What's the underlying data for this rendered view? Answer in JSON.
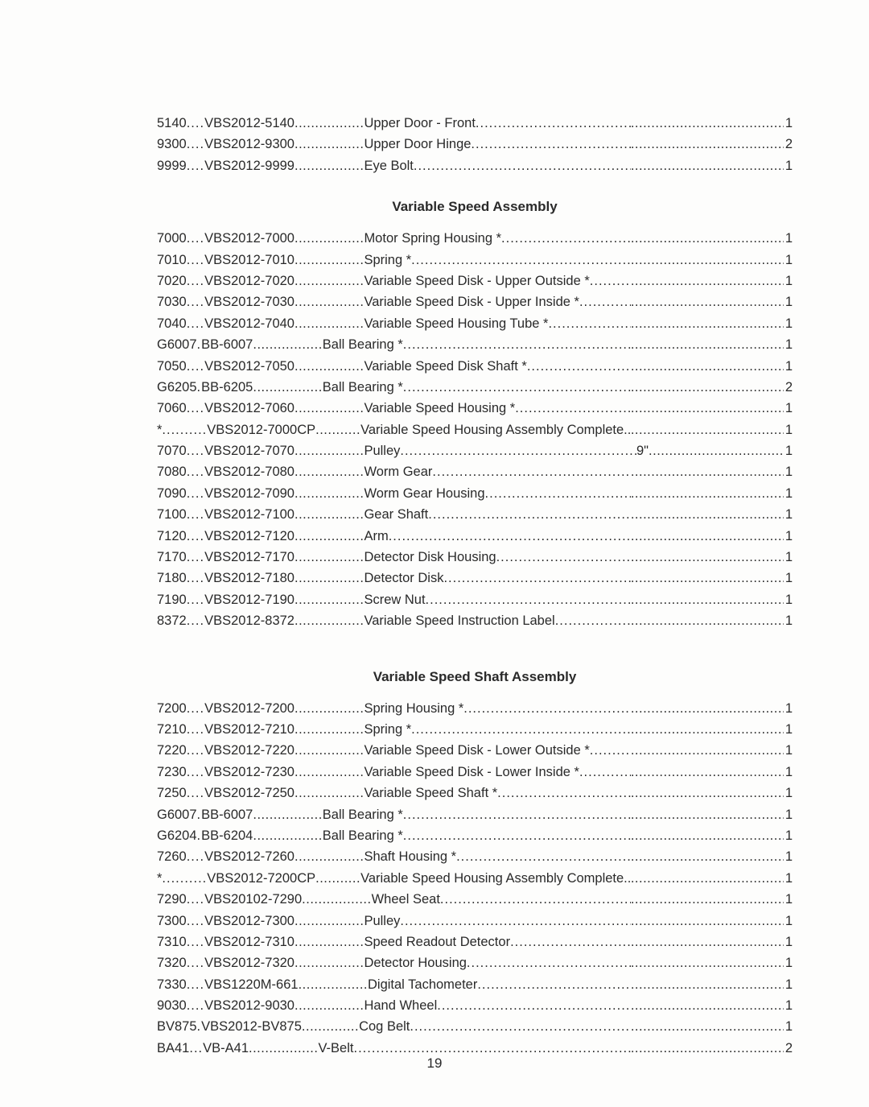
{
  "page_number": "19",
  "sections": [
    {
      "title": null,
      "rows": [
        {
          "ref": "5140",
          "part": "VBS2012-5140",
          "desc": "Upper Door - Front",
          "extra": "",
          "qty": "1"
        },
        {
          "ref": "9300",
          "part": "VBS2012-9300",
          "desc": "Upper Door Hinge",
          "extra": "",
          "qty": "2"
        },
        {
          "ref": "9999",
          "part": "VBS2012-9999",
          "desc": "Eye Bolt",
          "extra": "",
          "qty": "1"
        }
      ]
    },
    {
      "title": "Variable Speed Assembly",
      "rows": [
        {
          "ref": "7000",
          "part": "VBS2012-7000",
          "desc": "Motor Spring Housing *",
          "extra": "",
          "qty": "1"
        },
        {
          "ref": "7010",
          "part": "VBS2012-7010",
          "desc": "Spring *",
          "extra": "",
          "qty": "1"
        },
        {
          "ref": "7020",
          "part": "VBS2012-7020",
          "desc": "Variable Speed Disk - Upper Outside *",
          "extra": "",
          "qty": "1"
        },
        {
          "ref": "7030",
          "part": "VBS2012-7030",
          "desc": "Variable Speed Disk - Upper Inside *",
          "extra": "",
          "qty": "1"
        },
        {
          "ref": "7040",
          "part": "VBS2012-7040",
          "desc": "Variable Speed Housing Tube *",
          "extra": "",
          "qty": "1"
        },
        {
          "ref": "G6007",
          "part": "BB-6007",
          "desc": "Ball Bearing *",
          "extra": "",
          "qty": "1",
          "sep1": ". "
        },
        {
          "ref": "7050",
          "part": "VBS2012-7050",
          "desc": "Variable Speed Disk Shaft *",
          "extra": "",
          "qty": "1"
        },
        {
          "ref": "G6205",
          "part": "BB-6205",
          "desc": "Ball Bearing *",
          "extra": "",
          "qty": "2",
          "sep1": ". "
        },
        {
          "ref": "7060",
          "part": "VBS2012-7060",
          "desc": "Variable Speed Housing *",
          "extra": "",
          "qty": "1"
        },
        {
          "ref": "*",
          "part": "VBS2012-7000CP",
          "desc": "Variable Speed Housing Assembly Complete.",
          "extra": "",
          "qty": "1",
          "sep1": ".......... ",
          "sep2": " ........... "
        },
        {
          "ref": "7070",
          "part": "VBS2012-7070",
          "desc": "Pulley",
          "extra": "9\"",
          "qty": "1"
        },
        {
          "ref": "7080",
          "part": "VBS2012-7080",
          "desc": "Worm Gear",
          "extra": "",
          "qty": "1"
        },
        {
          "ref": "7090",
          "part": "VBS2012-7090",
          "desc": "Worm Gear Housing",
          "extra": "",
          "qty": "1"
        },
        {
          "ref": "7100",
          "part": "VBS2012-7100",
          "desc": "Gear Shaft",
          "extra": "",
          "qty": "1"
        },
        {
          "ref": "7120",
          "part": "VBS2012-7120",
          "desc": "Arm",
          "extra": "",
          "qty": "1"
        },
        {
          "ref": "7170",
          "part": "VBS2012-7170",
          "desc": "Detector Disk Housing",
          "extra": "",
          "qty": "1"
        },
        {
          "ref": "7180",
          "part": "VBS2012-7180",
          "desc": "Detector Disk",
          "extra": "",
          "qty": "1"
        },
        {
          "ref": "7190",
          "part": "VBS2012-7190",
          "desc": "Screw Nut",
          "extra": "",
          "qty": "1"
        },
        {
          "ref": "8372",
          "part": "VBS2012-8372",
          "desc": "Variable Speed Instruction Label",
          "extra": "",
          "qty": "1"
        }
      ]
    },
    {
      "title": "Variable Speed Shaft Assembly",
      "rows": [
        {
          "ref": "7200",
          "part": "VBS2012-7200",
          "desc": "Spring Housing *",
          "extra": "",
          "qty": "1"
        },
        {
          "ref": "7210",
          "part": "VBS2012-7210",
          "desc": "Spring *",
          "extra": "",
          "qty": "1"
        },
        {
          "ref": "7220",
          "part": "VBS2012-7220",
          "desc": "Variable Speed Disk - Lower Outside *",
          "extra": "",
          "qty": "1"
        },
        {
          "ref": "7230",
          "part": "VBS2012-7230",
          "desc": "Variable Speed Disk - Lower Inside *",
          "extra": "",
          "qty": "1"
        },
        {
          "ref": "7250",
          "part": "VBS2012-7250",
          "desc": "Variable Speed Shaft *",
          "extra": "",
          "qty": "1"
        },
        {
          "ref": "G6007",
          "part": "BB-6007",
          "desc": "Ball Bearing *",
          "extra": "",
          "qty": "1",
          "sep1": ". "
        },
        {
          "ref": "G6204",
          "part": "BB-6204",
          "desc": "Ball Bearing *",
          "extra": "",
          "qty": "1",
          "sep1": ". "
        },
        {
          "ref": "7260",
          "part": "VBS2012-7260",
          "desc": "Shaft Housing *",
          "extra": "",
          "qty": "1"
        },
        {
          "ref": "*",
          "part": "VBS2012-7200CP",
          "desc": "Variable Speed Housing Assembly Complete.",
          "extra": "",
          "qty": "1",
          "sep1": ".......... ",
          "sep2": " ........... "
        },
        {
          "ref": "7290",
          "part": "VBS20102-7290",
          "desc": "Wheel Seat",
          "extra": "",
          "qty": "1"
        },
        {
          "ref": "7300",
          "part": "VBS2012-7300",
          "desc": "Pulley",
          "extra": "",
          "qty": "1"
        },
        {
          "ref": "7310",
          "part": "VBS2012-7310",
          "desc": "Speed Readout Detector",
          "extra": "",
          "qty": "1"
        },
        {
          "ref": "7320",
          "part": "VBS2012-7320",
          "desc": "Detector Housing",
          "extra": "",
          "qty": "1"
        },
        {
          "ref": "7330",
          "part": "VBS1220M-661",
          "desc": "Digital Tachometer",
          "extra": "",
          "qty": "1"
        },
        {
          "ref": "9030",
          "part": "VBS2012-9030",
          "desc": "Hand Wheel",
          "extra": "",
          "qty": "1"
        },
        {
          "ref": "BV875",
          "part": "VBS2012-BV875",
          "desc": "Cog Belt",
          "extra": "",
          "qty": "1",
          "sep1": ". ",
          "sep2": ".............. "
        },
        {
          "ref": "BA41",
          "part": "VB-A41",
          "desc": "V-Belt",
          "extra": "",
          "qty": "2",
          "sep1": "... "
        }
      ]
    }
  ],
  "style": {
    "font_size_row": 16.5,
    "font_size_title": 17,
    "text_color": "#2a2a2a",
    "background_color": "#fdfdfc",
    "extra_col_width": 190,
    "dots_long": "................................................................................................................................................................",
    "sep1_default": ".... ",
    "sep2_default": " ................. ",
    "sep3_default": " ................................. "
  }
}
